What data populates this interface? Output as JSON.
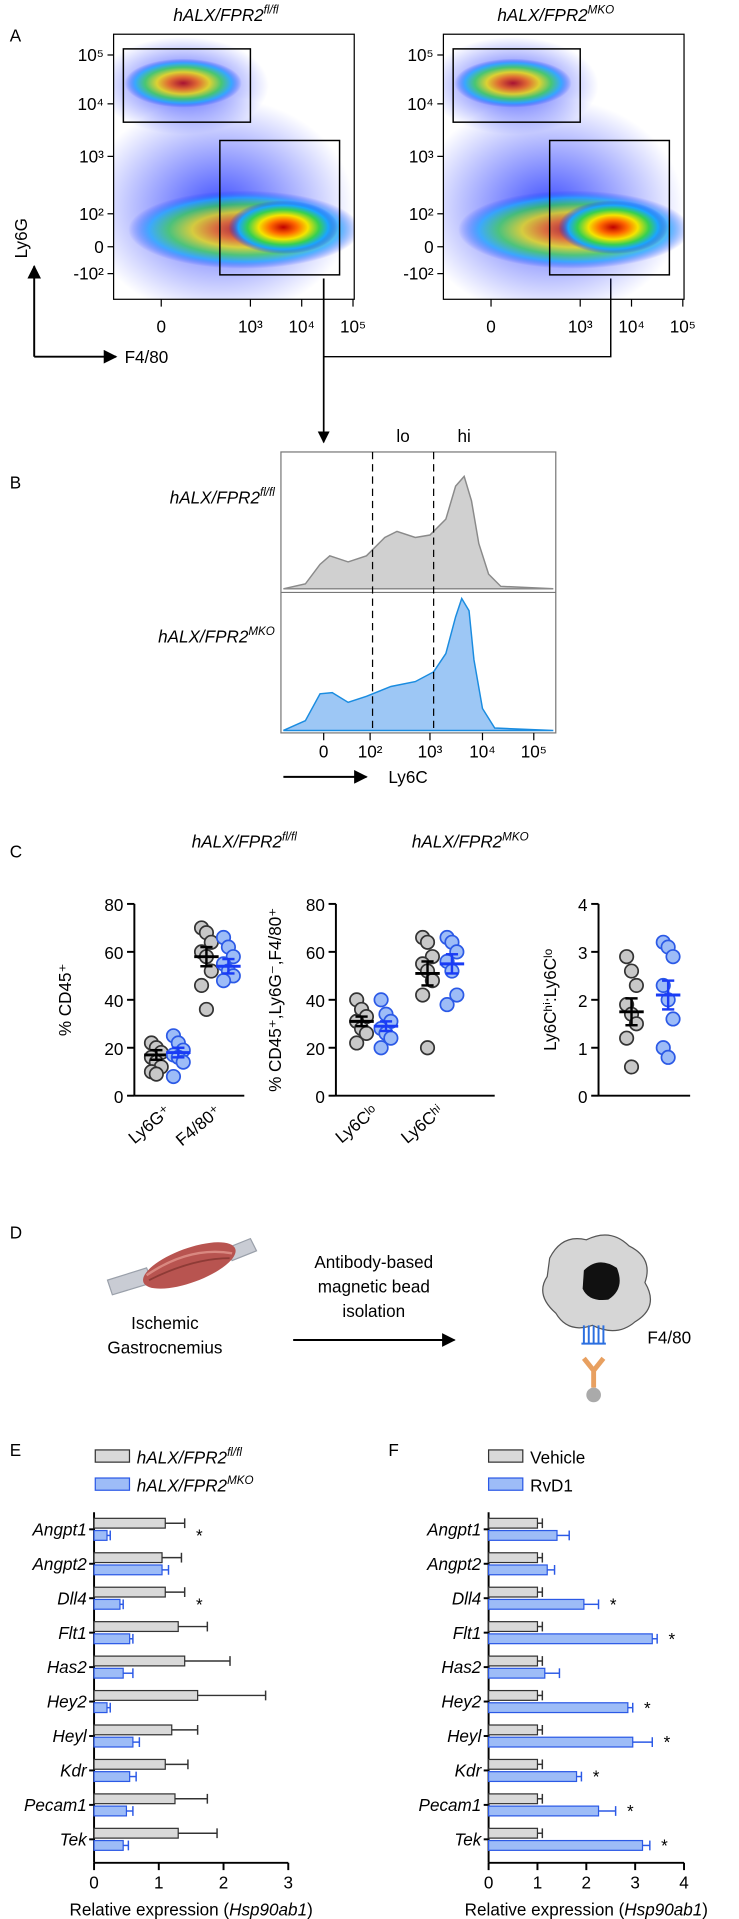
{
  "panel_labels": [
    "A",
    "B",
    "C",
    "D",
    "E",
    "F"
  ],
  "flow": {
    "titles": [
      {
        "main": "hALX/FPR2",
        "sup": "fl/fl"
      },
      {
        "main": "hALX/FPR2",
        "sup": "MKO"
      }
    ],
    "y_label": "Ly6G",
    "x_label": "F4/80",
    "yticks": [
      "10⁵",
      "10⁴",
      "10³",
      "10²",
      "0",
      "-10²"
    ],
    "xticks": [
      "0",
      "10³",
      "10⁴",
      "10⁵"
    ]
  },
  "histogram": {
    "rows": [
      {
        "main": "hALX/FPR2",
        "sup": "fl/fl"
      },
      {
        "main": "hALX/FPR2",
        "sup": "MKO"
      }
    ],
    "gates": [
      "lo",
      "hi"
    ],
    "xticks": [
      "0",
      "10²",
      "10³",
      "10⁴",
      "10⁵"
    ],
    "x_label": "Ly6C"
  },
  "diagram": {
    "tissue": [
      "Ischemic",
      "Gastrocnemius"
    ],
    "method": [
      "Antibody-based",
      "magnetic bead",
      "isolation"
    ],
    "marker": "F4/80"
  },
  "chart_data": [
    {
      "type": "dot",
      "y_label": "% CD45⁺",
      "ylim": [
        0,
        80
      ],
      "yticks": [
        0,
        20,
        40,
        60,
        80
      ],
      "categories": [
        "Ly6G⁺",
        "F4/80⁺"
      ],
      "series": [
        {
          "name": "hALX/FPR2",
          "name_sup": "fl/fl",
          "label_color": "#000000",
          "color": "#c8c8c8",
          "edge_color": "#333333",
          "line_color": "#000000",
          "values": [
            [
              22,
              20,
              18,
              16,
              14,
              12,
              10,
              9
            ],
            [
              70,
              68,
              64,
              60,
              58,
              52,
              46,
              36
            ]
          ],
          "mean": [
            17,
            58
          ],
          "sem": [
            2,
            4
          ]
        },
        {
          "name": "hALX/FPR2",
          "name_sup": "MKO",
          "label_color": "#1a3cf5",
          "color": "#9dbcf7",
          "edge_color": "#2b59e6",
          "line_color": "#1a3cf5",
          "values": [
            [
              25,
              22,
              19,
              17,
              16,
              14,
              8
            ],
            [
              66,
              62,
              58,
              55,
              52,
              50,
              48
            ]
          ],
          "mean": [
            18,
            54
          ],
          "sem": [
            2,
            3
          ]
        }
      ]
    },
    {
      "type": "dot",
      "y_label": "% CD45⁺,Ly6G⁻,F4/80⁺",
      "ylim": [
        0,
        80
      ],
      "yticks": [
        0,
        20,
        40,
        60,
        80
      ],
      "categories": [
        "Ly6Cˡᵒ",
        "Ly6Cʰⁱ"
      ],
      "series": [
        {
          "color": "#c8c8c8",
          "edge_color": "#333333",
          "line_color": "#000000",
          "values": [
            [
              40,
              36,
              33,
              31,
              28,
              26,
              22
            ],
            [
              66,
              64,
              58,
              55,
              52,
              48,
              42,
              20
            ]
          ],
          "mean": [
            31,
            51
          ],
          "sem": [
            2,
            5
          ]
        },
        {
          "color": "#9dbcf7",
          "edge_color": "#2b59e6",
          "line_color": "#1a3cf5",
          "values": [
            [
              40,
              34,
              31,
              28,
              26,
              24,
              20
            ],
            [
              66,
              64,
              60,
              56,
              52,
              42,
              38
            ]
          ],
          "mean": [
            29,
            55
          ],
          "sem": [
            2,
            4
          ]
        }
      ]
    },
    {
      "type": "dot",
      "y_label": "Ly6Cʰⁱ:Ly6Cˡᵒ",
      "ylim": [
        0,
        4
      ],
      "yticks": [
        0,
        1,
        2,
        3,
        4
      ],
      "categories": [
        null
      ],
      "series": [
        {
          "color": "#c8c8c8",
          "edge_color": "#333333",
          "line_color": "#000000",
          "values": [
            [
              2.9,
              2.6,
              2.3,
              1.9,
              1.7,
              1.5,
              1.2,
              0.6
            ]
          ],
          "mean": [
            1.75
          ],
          "sem": [
            0.28
          ]
        },
        {
          "color": "#9dbcf7",
          "edge_color": "#2b59e6",
          "line_color": "#1a3cf5",
          "values": [
            [
              3.2,
              3.1,
              2.9,
              2.3,
              2.0,
              1.6,
              1.0,
              0.8
            ]
          ],
          "mean": [
            2.1
          ],
          "sem": [
            0.3
          ]
        }
      ]
    },
    {
      "type": "hbar",
      "categories": [
        "Angpt1",
        "Angpt2",
        "Dll4",
        "Flt1",
        "Has2",
        "Hey2",
        "Heyl",
        "Kdr",
        "Pecam1",
        "Tek"
      ],
      "xlim": [
        0,
        3
      ],
      "xticks": [
        0,
        1,
        2,
        3
      ],
      "x_label": {
        "pre": "Relative expression (",
        "italic": "Hsp90ab1",
        "post": ")"
      },
      "series": [
        {
          "name": "hALX/FPR2",
          "name_sup": "fl/fl",
          "color": "#d9d9d9",
          "edge_color": "#333333",
          "values": [
            1.1,
            1.05,
            1.1,
            1.3,
            1.4,
            1.6,
            1.2,
            1.1,
            1.25,
            1.3
          ],
          "errors": [
            0.3,
            0.3,
            0.3,
            0.45,
            0.7,
            1.05,
            0.4,
            0.35,
            0.5,
            0.6
          ]
        },
        {
          "name": "hALX/FPR2",
          "name_sup": "MKO",
          "color": "#9dbcf7",
          "edge_color": "#2b59e6",
          "values": [
            0.2,
            1.05,
            0.4,
            0.55,
            0.45,
            0.2,
            0.6,
            0.55,
            0.5,
            0.45
          ],
          "errors": [
            0.05,
            0.1,
            0.05,
            0.05,
            0.15,
            0.05,
            0.1,
            0.1,
            0.1,
            0.08
          ]
        }
      ],
      "significance": [
        "*",
        null,
        "*",
        null,
        null,
        null,
        null,
        null,
        null,
        null
      ]
    },
    {
      "type": "hbar",
      "categories": [
        "Angpt1",
        "Angpt2",
        "Dll4",
        "Flt1",
        "Has2",
        "Hey2",
        "Heyl",
        "Kdr",
        "Pecam1",
        "Tek"
      ],
      "xlim": [
        0,
        4
      ],
      "xticks": [
        0,
        1,
        2,
        3,
        4
      ],
      "x_label": {
        "pre": "Relative expression (",
        "italic": "Hsp90ab1",
        "post": ")"
      },
      "series": [
        {
          "name": "Vehicle",
          "color": "#d9d9d9",
          "edge_color": "#333333",
          "values": [
            1.0,
            1.0,
            1.0,
            1.0,
            1.0,
            1.0,
            1.0,
            1.0,
            1.0,
            1.0
          ],
          "errors": [
            0.1,
            0.1,
            0.1,
            0.1,
            0.1,
            0.1,
            0.1,
            0.1,
            0.1,
            0.1
          ]
        },
        {
          "name": "RvD1",
          "color": "#9dbcf7",
          "edge_color": "#2b59e6",
          "values": [
            1.4,
            1.2,
            1.95,
            3.35,
            1.15,
            2.85,
            2.95,
            1.8,
            2.25,
            3.15
          ],
          "errors": [
            0.25,
            0.15,
            0.3,
            0.1,
            0.3,
            0.1,
            0.4,
            0.1,
            0.35,
            0.15
          ]
        }
      ],
      "significance": [
        null,
        null,
        "*",
        "*",
        null,
        "*",
        "*",
        "*",
        "*",
        "*"
      ]
    }
  ]
}
